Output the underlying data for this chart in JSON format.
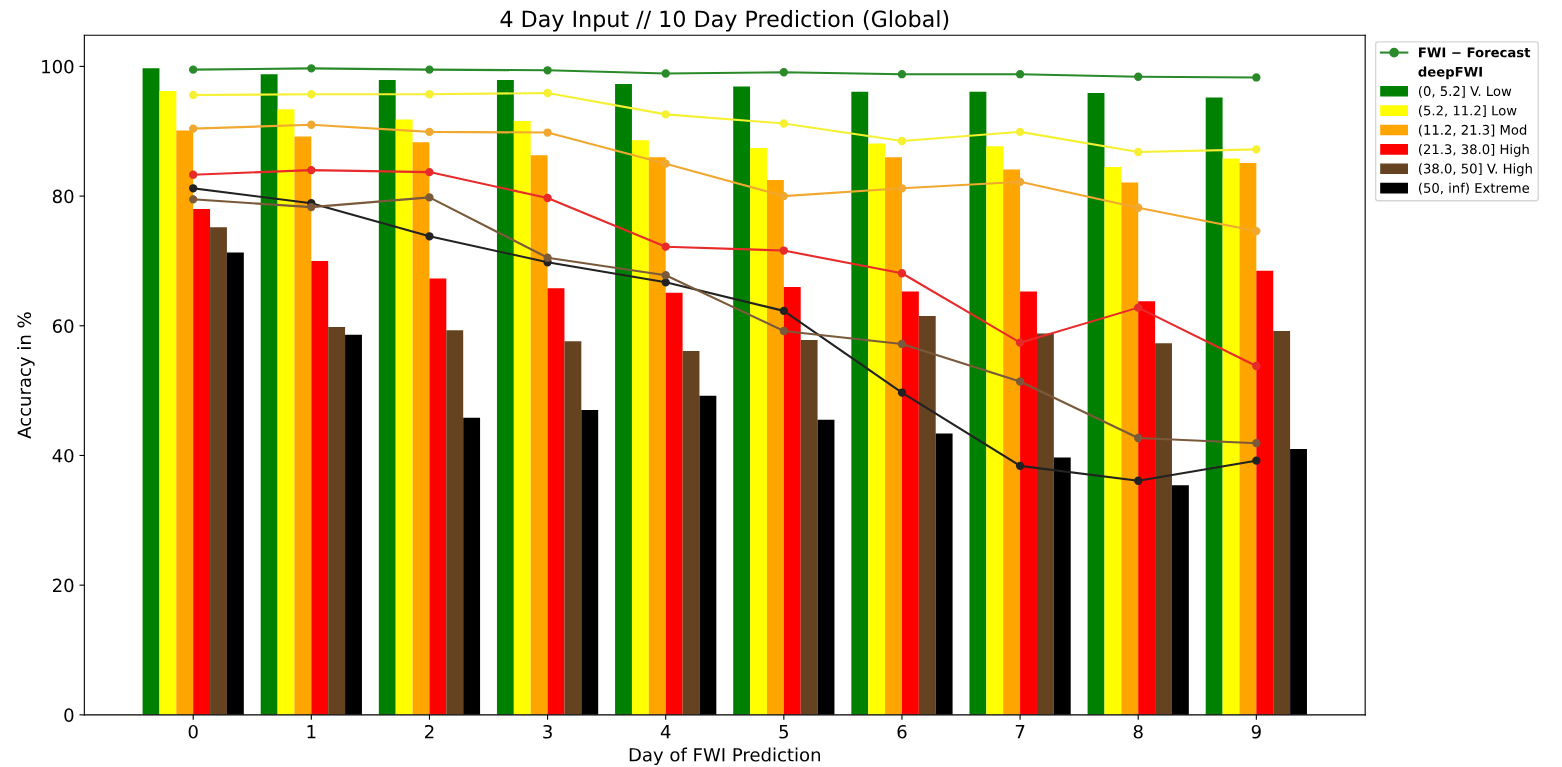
{
  "chart_data": {
    "type": "bar",
    "title": "4 Day Input // 10 Day Prediction (Global)",
    "xlabel": "Day of FWI Prediction",
    "ylabel": "Accuracy in %",
    "categories": [
      "0",
      "1",
      "2",
      "3",
      "4",
      "5",
      "6",
      "7",
      "8",
      "9"
    ],
    "ylim": [
      0,
      104.8
    ],
    "yticks": [
      0,
      20,
      40,
      60,
      80,
      100
    ],
    "grid": false,
    "legend": "top right",
    "legend_title": "deepFWI",
    "marker": "circle",
    "series": [
      {
        "type": "line",
        "name": "FWI − Forecast",
        "color": "#2a8a2a",
        "values": [
          99.5,
          99.7,
          99.5,
          99.4,
          98.9,
          99.1,
          98.8,
          98.8,
          98.4,
          98.3
        ]
      },
      {
        "type": "line",
        "color": "#f5f032",
        "values": [
          95.6,
          95.7,
          95.7,
          95.9,
          92.6,
          91.2,
          88.5,
          89.9,
          86.8,
          87.2
        ]
      },
      {
        "type": "line",
        "color": "#f0a830",
        "values": [
          90.4,
          91.0,
          89.9,
          89.8,
          85.0,
          80.0,
          81.2,
          82.2,
          78.2,
          74.6
        ]
      },
      {
        "type": "line",
        "color": "#e82a2a",
        "values": [
          83.3,
          84.0,
          83.7,
          79.7,
          72.2,
          71.6,
          68.1,
          57.4,
          62.8,
          53.8
        ]
      },
      {
        "type": "line",
        "color": "#7a5a3a",
        "values": [
          79.5,
          78.3,
          79.8,
          70.5,
          67.8,
          59.2,
          57.2,
          51.4,
          42.7,
          41.9
        ]
      },
      {
        "type": "line",
        "color": "#222222",
        "values": [
          81.2,
          78.9,
          73.8,
          69.8,
          66.7,
          62.3,
          49.7,
          38.4,
          36.1,
          39.2
        ]
      },
      {
        "name": "(0, 5.2] V. Low",
        "color": "#008000",
        "values": [
          99.7,
          98.8,
          97.9,
          97.9,
          97.3,
          96.9,
          96.1,
          96.1,
          95.9,
          95.2
        ]
      },
      {
        "name": "(5.2, 11.2] Low",
        "color": "#ffff00",
        "values": [
          96.2,
          93.4,
          91.8,
          91.6,
          88.6,
          87.4,
          88.1,
          87.7,
          84.5,
          85.8
        ]
      },
      {
        "name": "(11.2, 21.3] Mod",
        "color": "#ffa500",
        "values": [
          90.1,
          89.2,
          88.3,
          86.3,
          86.0,
          82.5,
          86.0,
          84.1,
          82.1,
          85.1
        ]
      },
      {
        "name": "(21.3, 38.0] High",
        "color": "#ff0000",
        "values": [
          78.0,
          70.0,
          67.3,
          65.8,
          65.1,
          66.0,
          65.3,
          65.3,
          63.8,
          68.5
        ]
      },
      {
        "name": "(38.0, 50] V. High",
        "color": "#654321",
        "values": [
          75.2,
          59.8,
          59.3,
          57.6,
          56.1,
          57.8,
          61.5,
          58.8,
          57.3,
          59.2
        ]
      },
      {
        "name": "(50, inf) Extreme",
        "color": "#000000",
        "values": [
          71.3,
          58.6,
          45.8,
          47.0,
          49.2,
          45.5,
          43.4,
          39.7,
          35.4,
          41.0
        ]
      }
    ]
  }
}
